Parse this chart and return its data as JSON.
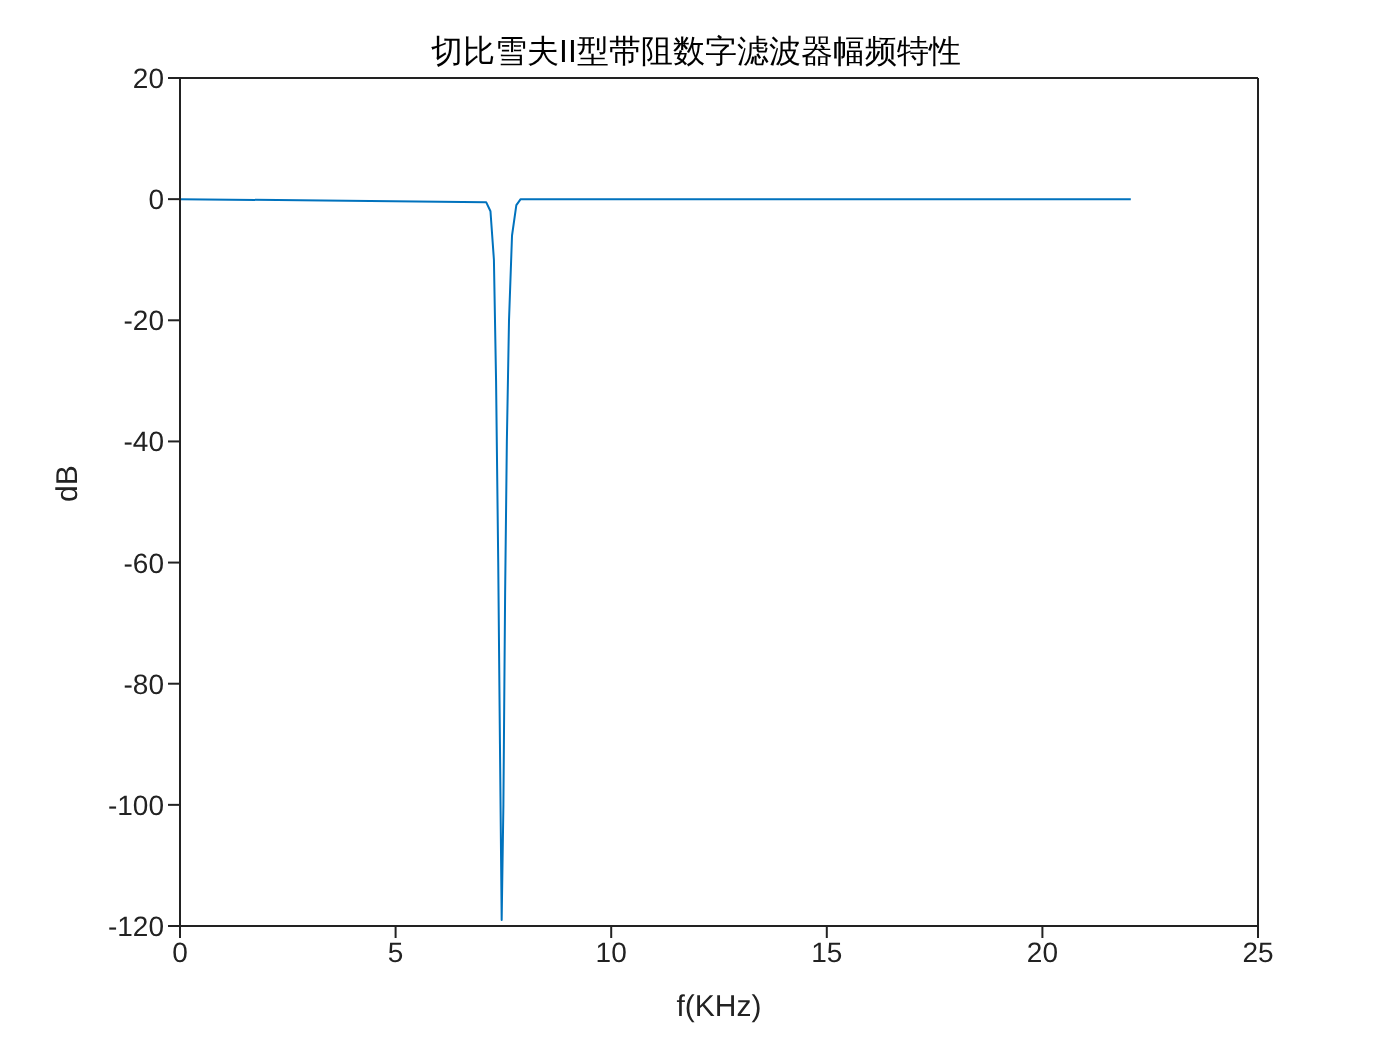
{
  "chart_data": {
    "type": "line",
    "title": "切比雪夫II型带阻数字滤波器幅频特性",
    "xlabel": "f(KHz)",
    "ylabel": "dB",
    "series": [
      {
        "color": "#0072bd",
        "x": [
          0,
          7.1,
          7.2,
          7.28,
          7.33,
          7.38,
          7.42,
          7.46,
          7.5,
          7.54,
          7.58,
          7.63,
          7.7,
          7.8,
          7.9,
          22.05
        ],
        "values": [
          0,
          -0.5,
          -2,
          -10,
          -30,
          -60,
          -90,
          -119,
          -100,
          -65,
          -40,
          -20,
          -6,
          -1,
          0,
          0
        ]
      }
    ],
    "xlim": [
      0,
      25
    ],
    "xticks": [
      0,
      5,
      10,
      15,
      20,
      25
    ],
    "ylim": [
      -120,
      20
    ],
    "yticks": [
      -120,
      -100,
      -80,
      -60,
      -40,
      -20,
      0,
      20
    ],
    "grid": false,
    "legend": false
  }
}
